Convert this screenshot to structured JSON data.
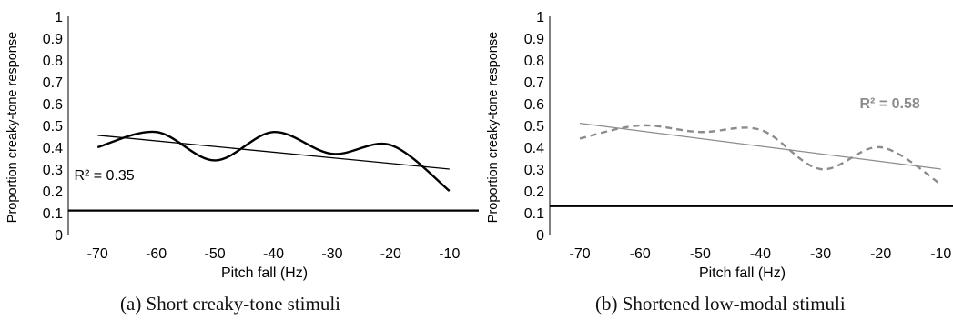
{
  "chart_data": [
    {
      "type": "line",
      "caption": "(a) Short creaky-tone stimuli",
      "xlabel": "Pitch fall (Hz)",
      "ylabel": "Proportion creaky-tone response",
      "x": [
        -70,
        -60,
        -50,
        -40,
        -30,
        -20,
        -10
      ],
      "xlim": [
        -75,
        -5
      ],
      "ylim": [
        0,
        1
      ],
      "yticks": [
        0,
        0.1,
        0.2,
        0.3,
        0.4,
        0.5,
        0.6,
        0.7,
        0.8,
        0.9,
        1
      ],
      "yticklabels": [
        "0",
        "0.1",
        "0.2",
        "0.3",
        "0.4",
        "0.5",
        "0.6",
        "0.7",
        "0.8",
        "0.9",
        "1"
      ],
      "xticklabels": [
        "-70",
        "-60",
        "-50",
        "-40",
        "-30",
        "-20",
        "-10"
      ],
      "series": [
        {
          "values": [
            0.4,
            0.47,
            0.34,
            0.47,
            0.37,
            0.41,
            0.2
          ],
          "color": "#000000",
          "style": "smooth-solid"
        }
      ],
      "trendline": {
        "start": [
          -70,
          0.455
        ],
        "end": [
          -10,
          0.3
        ],
        "color": "#000000"
      },
      "reference_line": {
        "y": 0.11,
        "color": "#000000"
      },
      "annotation": {
        "text": "R² = 0.35",
        "x": -74,
        "y": 0.25,
        "color": "#000000",
        "bold": false
      },
      "grid": false,
      "legend": "none"
    },
    {
      "type": "line",
      "caption": "(b) Shortened low-modal stimuli",
      "xlabel": "Pitch fall (Hz)",
      "ylabel": "Proportion creaky-tone response",
      "x": [
        -70,
        -60,
        -50,
        -40,
        -30,
        -20,
        -10
      ],
      "xlim": [
        -75,
        -8
      ],
      "ylim": [
        0,
        1
      ],
      "yticks": [
        0,
        0.1,
        0.2,
        0.3,
        0.4,
        0.5,
        0.6,
        0.7,
        0.8,
        0.9,
        1
      ],
      "yticklabels": [
        "0",
        "0.1",
        "0.2",
        "0.3",
        "0.4",
        "0.5",
        "0.6",
        "0.7",
        "0.8",
        "0.9",
        "1"
      ],
      "xticklabels": [
        "-70",
        "-60",
        "-50",
        "-40",
        "-30",
        "-20",
        "-10"
      ],
      "series": [
        {
          "values": [
            0.44,
            0.5,
            0.47,
            0.48,
            0.3,
            0.4,
            0.23
          ],
          "color": "#8c8c8c",
          "style": "smooth-dashed"
        }
      ],
      "trendline": {
        "start": [
          -70,
          0.51
        ],
        "end": [
          -10,
          0.3
        ],
        "color": "#8c8c8c"
      },
      "reference_line": {
        "y": 0.13,
        "color": "#000000"
      },
      "annotation": {
        "text": "R² = 0.58",
        "x": -23.5,
        "y": 0.58,
        "color": "#8c8c8c",
        "bold": true
      },
      "grid": false,
      "legend": "none"
    }
  ]
}
